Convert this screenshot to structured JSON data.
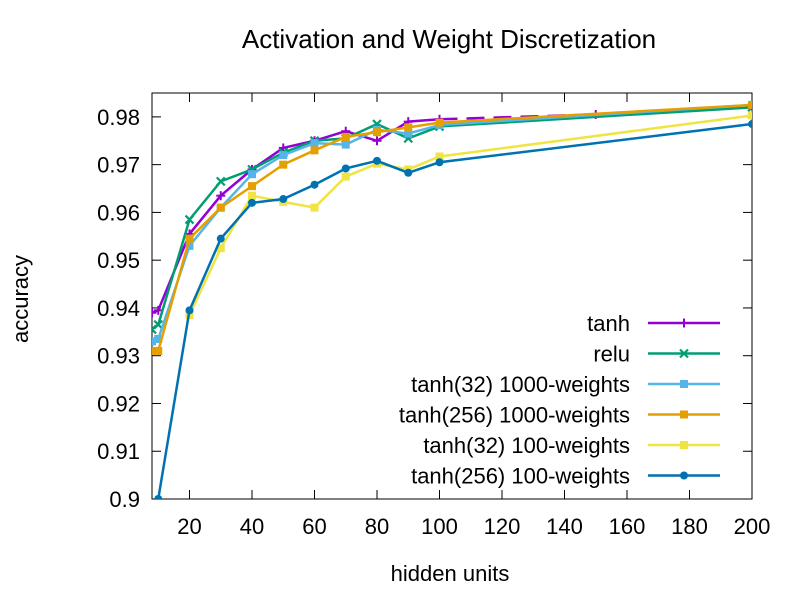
{
  "chart_data": {
    "type": "line",
    "title": "Activation and Weight Discretization",
    "xlabel": "hidden units",
    "ylabel": "accuracy",
    "xlim": [
      8,
      200
    ],
    "ylim": [
      0.9,
      0.985
    ],
    "xticks": [
      20,
      40,
      60,
      80,
      100,
      120,
      140,
      160,
      180,
      200
    ],
    "xtick_labels": [
      "20",
      "40",
      "60",
      "80",
      "100",
      "120",
      "140",
      "160",
      "180",
      "200"
    ],
    "yticks": [
      0.9,
      0.91,
      0.92,
      0.93,
      0.94,
      0.95,
      0.96,
      0.97,
      0.98
    ],
    "ytick_labels": [
      "0.9",
      "0.91",
      "0.92",
      "0.93",
      "0.94",
      "0.95",
      "0.96",
      "0.97",
      "0.98"
    ],
    "grid": false,
    "legend_position": "bottom-right",
    "series": [
      {
        "name": "tanh",
        "color": "#9400d3",
        "marker": "plus",
        "dash": "solid-then-dashed",
        "x": [
          8,
          10,
          20,
          30,
          40,
          50,
          60,
          70,
          80,
          90,
          100,
          150
        ],
        "y": [
          0.939,
          0.9395,
          0.9555,
          0.9635,
          0.969,
          0.9735,
          0.975,
          0.977,
          0.975,
          0.979,
          0.9795,
          0.9805
        ]
      },
      {
        "name": "relu",
        "color": "#009e73",
        "marker": "x",
        "dash": "solid",
        "x": [
          8,
          10,
          20,
          30,
          40,
          50,
          60,
          70,
          80,
          90,
          100,
          200
        ],
        "y": [
          0.9355,
          0.9365,
          0.9585,
          0.9665,
          0.969,
          0.9725,
          0.975,
          0.9755,
          0.9785,
          0.9755,
          0.978,
          0.982
        ]
      },
      {
        "name": "tanh(32) 1000-weights",
        "color": "#56b4e9",
        "marker": "square",
        "dash": "solid",
        "x": [
          8,
          10,
          20,
          30,
          40,
          50,
          60,
          70,
          80,
          90,
          100,
          200
        ],
        "y": [
          0.933,
          0.9335,
          0.953,
          0.961,
          0.968,
          0.972,
          0.9745,
          0.9742,
          0.9773,
          0.9765,
          0.9783,
          0.9825
        ]
      },
      {
        "name": "tanh(256) 1000-weights",
        "color": "#e69f00",
        "marker": "square",
        "dash": "solid",
        "x": [
          8,
          10,
          20,
          30,
          40,
          50,
          60,
          70,
          80,
          90,
          100,
          200
        ],
        "y": [
          0.931,
          0.931,
          0.9545,
          0.961,
          0.9655,
          0.97,
          0.973,
          0.9758,
          0.9768,
          0.9778,
          0.9788,
          0.9825
        ]
      },
      {
        "name": "tanh(32) 100-weights",
        "color": "#f0e442",
        "marker": "square",
        "dash": "solid",
        "x": [
          20,
          30,
          40,
          50,
          60,
          70,
          80,
          90,
          100,
          200
        ],
        "y": [
          0.9385,
          0.9525,
          0.9635,
          0.9622,
          0.961,
          0.9675,
          0.9702,
          0.969,
          0.9717,
          0.9803
        ]
      },
      {
        "name": "tanh(256) 100-weights",
        "color": "#0072b2",
        "marker": "circle",
        "dash": "solid",
        "x": [
          10,
          20,
          30,
          40,
          50,
          60,
          70,
          80,
          90,
          100,
          200
        ],
        "y": [
          0.9,
          0.9395,
          0.9545,
          0.962,
          0.9628,
          0.9658,
          0.9692,
          0.9708,
          0.9683,
          0.9705,
          0.9785
        ]
      }
    ]
  }
}
